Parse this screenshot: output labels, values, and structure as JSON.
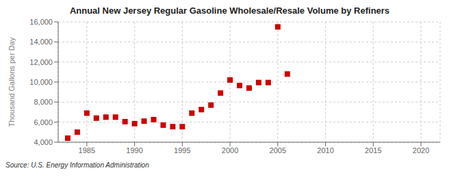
{
  "chart_data": {
    "type": "scatter",
    "title": "Annual New Jersey Regular Gasoline Wholesale/Resale Volume by Refiners",
    "ylabel": "Thousand Gallons per Day",
    "annotation": "Source: U.S. Energy Information Administration",
    "x": [
      1983,
      1984,
      1985,
      1986,
      1987,
      1988,
      1989,
      1990,
      1991,
      1992,
      1993,
      1994,
      1995,
      1996,
      1997,
      1998,
      1999,
      2000,
      2001,
      2002,
      2003,
      2004,
      2005,
      2006
    ],
    "values": [
      4400,
      5000,
      6900,
      6400,
      6500,
      6500,
      6050,
      5850,
      6100,
      6250,
      5700,
      5550,
      5550,
      6900,
      7250,
      7700,
      8900,
      10200,
      9650,
      9400,
      9950,
      9950,
      15500,
      10800
    ],
    "color": "#CC0000",
    "marker": "square",
    "xlim": [
      1982,
      2022
    ],
    "xticks": [
      1985,
      1990,
      1995,
      2000,
      2005,
      2010,
      2015,
      2020
    ],
    "ylim": [
      4000,
      16000
    ],
    "yticks": [
      {
        "value": 4000,
        "label": "4,000"
      },
      {
        "value": 6000,
        "label": "6,000"
      },
      {
        "value": 8000,
        "label": "8,000"
      },
      {
        "value": 10000,
        "label": "10,000"
      },
      {
        "value": 12000,
        "label": "12,000"
      },
      {
        "value": 14000,
        "label": "14,000"
      },
      {
        "value": 16000,
        "label": "16,000"
      }
    ],
    "grid": true
  }
}
